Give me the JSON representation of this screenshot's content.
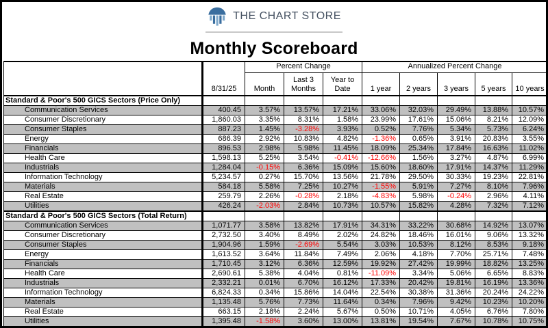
{
  "header": {
    "brand": "THE CHART STORE",
    "title": "Monthly Scoreboard"
  },
  "colors": {
    "negative": "#FF0000",
    "stripe": "#C0C0C0",
    "logo_blue_dark": "#3A6E9F",
    "logo_blue_light": "#7FA9CB",
    "brand_text": "#455161"
  },
  "table": {
    "corner_date": "8/31/25",
    "groups": [
      {
        "label": "Percent Change",
        "span": 3
      },
      {
        "label": "Annualized Percent Change",
        "span": 5
      }
    ],
    "columns": [
      "Month",
      "Last 3 Months",
      "Year to Date",
      "1 year",
      "2 years",
      "3 years",
      "5 years",
      "10 years"
    ],
    "sections": [
      {
        "title": "Standard & Poor's 500 GICS Sectors (Price Only)",
        "rows": [
          {
            "name": "Communication Services",
            "values": [
              "400.45",
              "3.57%",
              "13.57%",
              "17.21%",
              "33.06%",
              "32.03%",
              "29.49%",
              "13.88%",
              "10.57%"
            ]
          },
          {
            "name": "Consumer Discretionary",
            "values": [
              "1,860.03",
              "3.35%",
              "8.31%",
              "1.58%",
              "23.99%",
              "17.61%",
              "15.06%",
              "8.21%",
              "12.09%"
            ]
          },
          {
            "name": "Consumer Staples",
            "values": [
              "887.23",
              "1.45%",
              "-3.28%",
              "3.93%",
              "0.52%",
              "7.76%",
              "5.34%",
              "5.73%",
              "6.24%"
            ]
          },
          {
            "name": "Energy",
            "values": [
              "686.39",
              "2.92%",
              "10.83%",
              "4.82%",
              "-1.36%",
              "0.65%",
              "3.91%",
              "20.83%",
              "3.55%"
            ]
          },
          {
            "name": "Financials",
            "values": [
              "896.53",
              "2.98%",
              "5.98%",
              "11.45%",
              "18.09%",
              "25.34%",
              "17.84%",
              "16.63%",
              "11.02%"
            ]
          },
          {
            "name": "Health Care",
            "values": [
              "1,598.13",
              "5.25%",
              "3.54%",
              "-0.41%",
              "-12.66%",
              "1.56%",
              "3.27%",
              "4.87%",
              "6.99%"
            ]
          },
          {
            "name": "Industrials",
            "values": [
              "1,284.04",
              "-0.15%",
              "6.36%",
              "15.09%",
              "15.60%",
              "18.60%",
              "17.91%",
              "14.37%",
              "11.29%"
            ]
          },
          {
            "name": "Information Technology",
            "values": [
              "5,234.57",
              "0.27%",
              "15.70%",
              "13.56%",
              "21.78%",
              "29.50%",
              "30.33%",
              "19.23%",
              "22.81%"
            ]
          },
          {
            "name": "Materials",
            "values": [
              "584.18",
              "5.58%",
              "7.25%",
              "10.27%",
              "-1.55%",
              "5.91%",
              "7.27%",
              "8.10%",
              "7.96%"
            ]
          },
          {
            "name": "Real Estate",
            "values": [
              "259.79",
              "2.26%",
              "-0.28%",
              "2.18%",
              "-4.83%",
              "5.98%",
              "-0.24%",
              "2.96%",
              "4.11%"
            ]
          },
          {
            "name": "Utilities",
            "values": [
              "426.24",
              "-2.03%",
              "2.84%",
              "10.73%",
              "10.57%",
              "15.82%",
              "4.28%",
              "7.32%",
              "7.12%"
            ]
          }
        ]
      },
      {
        "title": "Standard & Poor's 500 GICS Sectors (Total Return)",
        "rows": [
          {
            "name": "Communication Services",
            "values": [
              "1,071.77",
              "3.58%",
              "13.82%",
              "17.91%",
              "34.31%",
              "33.22%",
              "30.68%",
              "14.92%",
              "13.07%"
            ]
          },
          {
            "name": "Consumer Discretionary",
            "values": [
              "2,732.50",
              "3.40%",
              "8.49%",
              "2.02%",
              "24.82%",
              "18.46%",
              "16.01%",
              "9.06%",
              "13.32%"
            ]
          },
          {
            "name": "Consumer Staples",
            "values": [
              "1,904.96",
              "1.59%",
              "-2.69%",
              "5.54%",
              "3.03%",
              "10.53%",
              "8.12%",
              "8.53%",
              "9.18%"
            ]
          },
          {
            "name": "Energy",
            "values": [
              "1,613.52",
              "3.64%",
              "11.84%",
              "7.49%",
              "2.06%",
              "4.18%",
              "7.70%",
              "25.71%",
              "7.48%"
            ]
          },
          {
            "name": "Financials",
            "values": [
              "1,710.45",
              "3.12%",
              "6.36%",
              "12.59%",
              "19.92%",
              "27.42%",
              "19.99%",
              "18.82%",
              "13.25%"
            ]
          },
          {
            "name": "Health Care",
            "values": [
              "2,690.61",
              "5.38%",
              "4.04%",
              "0.81%",
              "-11.09%",
              "3.34%",
              "5.06%",
              "6.65%",
              "8.83%"
            ]
          },
          {
            "name": "Industrials",
            "values": [
              "2,332.21",
              "0.01%",
              "6.70%",
              "16.12%",
              "17.33%",
              "20.42%",
              "19.81%",
              "16.19%",
              "13.36%"
            ]
          },
          {
            "name": "Information Technology",
            "values": [
              "6,824.33",
              "0.34%",
              "15.86%",
              "14.04%",
              "22.54%",
              "30.38%",
              "31.36%",
              "20.24%",
              "24.22%"
            ]
          },
          {
            "name": "Materials",
            "values": [
              "1,135.48",
              "5.76%",
              "7.73%",
              "11.64%",
              "0.34%",
              "7.96%",
              "9.42%",
              "10.23%",
              "10.20%"
            ]
          },
          {
            "name": "Real Estate",
            "values": [
              "663.15",
              "2.18%",
              "2.24%",
              "5.67%",
              "0.50%",
              "10.71%",
              "4.05%",
              "6.76%",
              "7.80%"
            ]
          },
          {
            "name": "Utilities",
            "values": [
              "1,395.48",
              "-1.58%",
              "3.60%",
              "13.00%",
              "13.81%",
              "19.54%",
              "7.67%",
              "10.78%",
              "10.75%"
            ]
          }
        ]
      }
    ]
  }
}
